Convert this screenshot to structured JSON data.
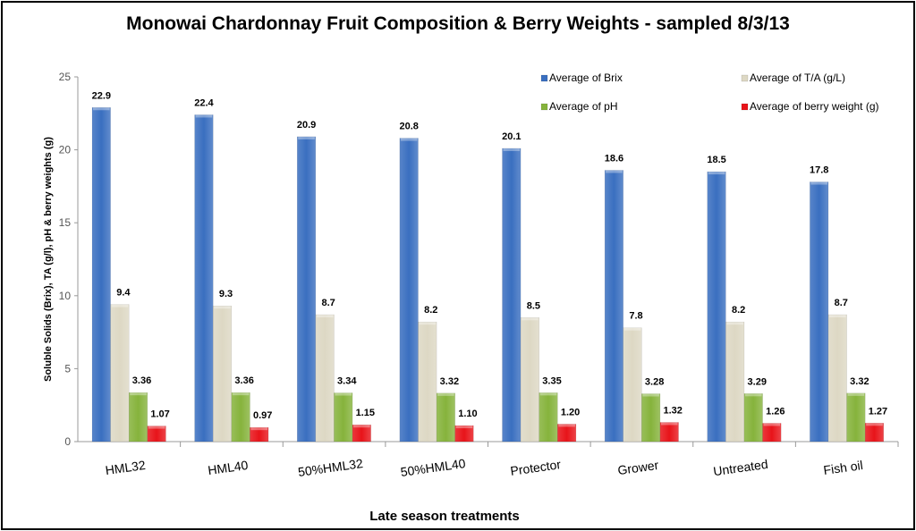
{
  "chart_data": {
    "type": "bar",
    "title": "Monowai Chardonnay Fruit Composition & Berry Weights - sampled 8/3/13",
    "xlabel": "Late season treatments",
    "ylabel": "Soluble Solids (Brix), TA (g/l), pH  & berry weights (g)",
    "ylim": [
      0,
      25
    ],
    "yticks": [
      0,
      5,
      10,
      15,
      20,
      25
    ],
    "grid": false,
    "legend_position": "top-right",
    "categories": [
      "HML32",
      "HML40",
      "50%HML32",
      "50%HML40",
      "Protector",
      "Grower",
      "Untreated",
      "Fish oil"
    ],
    "series": [
      {
        "name": "Average of Brix",
        "color": "#3a6fc0",
        "values": [
          22.9,
          22.4,
          20.9,
          20.8,
          20.1,
          18.6,
          18.5,
          17.8
        ],
        "labels": [
          "22.9",
          "22.4",
          "20.9",
          "20.8",
          "20.1",
          "18.6",
          "18.5",
          "17.8"
        ]
      },
      {
        "name": "Average of T/A (g/L)",
        "color": "#ddd8c4",
        "values": [
          9.4,
          9.3,
          8.7,
          8.2,
          8.5,
          7.8,
          8.2,
          8.7
        ],
        "labels": [
          "9.4",
          "9.3",
          "8.7",
          "8.2",
          "8.5",
          "7.8",
          "8.2",
          "8.7"
        ]
      },
      {
        "name": "Average of pH",
        "color": "#86b33c",
        "values": [
          3.36,
          3.36,
          3.34,
          3.32,
          3.35,
          3.28,
          3.29,
          3.32
        ],
        "labels": [
          "3.36",
          "3.36",
          "3.34",
          "3.32",
          "3.35",
          "3.28",
          "3.29",
          "3.32"
        ]
      },
      {
        "name": "Average of berry weight (g)",
        "color": "#e8141a",
        "values": [
          1.07,
          0.97,
          1.15,
          1.1,
          1.2,
          1.32,
          1.26,
          1.27
        ],
        "labels": [
          "1.07",
          "0.97",
          "1.15",
          "1.10",
          "1.20",
          "1.32",
          "1.26",
          "1.27"
        ]
      }
    ]
  }
}
